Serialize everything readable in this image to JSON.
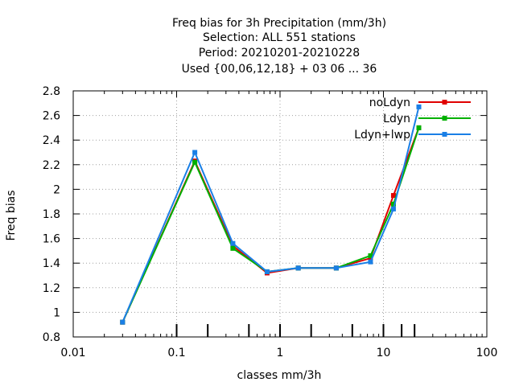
{
  "chart_data": {
    "type": "line",
    "title_lines": [
      "Freq bias  for 3h Precipitation (mm/3h)",
      "Selection: ALL    551 stations",
      "Period: 20210201-20210228",
      "Used {00,06,12,18} + 03 06 ... 36"
    ],
    "xlabel": "classes mm/3h",
    "ylabel": "Freq bias",
    "xscale": "log",
    "xlim": [
      0.01,
      100
    ],
    "ylim": [
      0.8,
      2.8
    ],
    "x_ticks": [
      0.01,
      0.1,
      1,
      10,
      100
    ],
    "x_tick_labels": [
      "0.01",
      "0.1",
      "1",
      "10",
      "100"
    ],
    "y_ticks": [
      0.8,
      1.0,
      1.2,
      1.4,
      1.6,
      1.8,
      2.0,
      2.2,
      2.4,
      2.6,
      2.8
    ],
    "y_tick_labels": [
      "0.8",
      "1",
      "1.2",
      "1.4",
      "1.6",
      "1.8",
      "2",
      "2.2",
      "2.4",
      "2.6",
      "2.8"
    ],
    "class_thresholds": [
      0.1,
      0.2,
      0.5,
      1,
      2,
      5,
      10,
      15,
      20
    ],
    "grid": true,
    "legend_position": "top-right",
    "series": [
      {
        "name": "noLdyn",
        "color": "#e00000",
        "points": [
          [
            0.03,
            0.92
          ],
          [
            0.15,
            2.23
          ],
          [
            0.35,
            1.54
          ],
          [
            0.75,
            1.32
          ],
          [
            1.5,
            1.36
          ],
          [
            3.5,
            1.36
          ],
          [
            7.5,
            1.44
          ],
          [
            12.5,
            1.95
          ],
          [
            22,
            2.5
          ]
        ]
      },
      {
        "name": "Ldyn",
        "color": "#00b000",
        "points": [
          [
            0.03,
            0.92
          ],
          [
            0.15,
            2.22
          ],
          [
            0.35,
            1.52
          ],
          [
            0.75,
            1.33
          ],
          [
            1.5,
            1.36
          ],
          [
            3.5,
            1.36
          ],
          [
            7.5,
            1.46
          ],
          [
            12.5,
            1.88
          ],
          [
            22,
            2.5
          ]
        ]
      },
      {
        "name": "Ldyn+lwp",
        "color": "#1a7fe6",
        "points": [
          [
            0.03,
            0.92
          ],
          [
            0.15,
            2.3
          ],
          [
            0.35,
            1.56
          ],
          [
            0.75,
            1.33
          ],
          [
            1.5,
            1.36
          ],
          [
            3.5,
            1.36
          ],
          [
            7.5,
            1.41
          ],
          [
            12.5,
            1.84
          ],
          [
            22,
            2.67
          ]
        ]
      }
    ]
  }
}
